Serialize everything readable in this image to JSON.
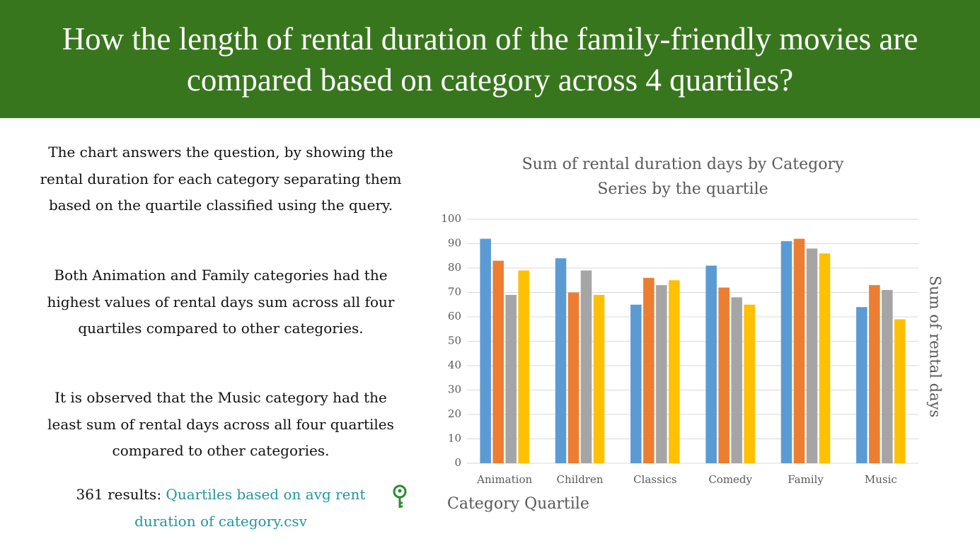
{
  "header": {
    "title": "How the length of rental duration of the family-friendly movies are compared based on category across 4 quartiles?"
  },
  "paragraphs": [
    "The chart answers the question, by showing the rental duration for each category separating them based on the quartile classified using the query.",
    "Both Animation and Family categories had the highest values of rental days sum across all four quartiles compared to other categories.",
    "It is observed that the Music category had the least sum of rental days across all four quartiles compared to other categories."
  ],
  "results": {
    "prefix": "361 results:",
    "link": "Quartiles based on avg rent duration of category.csv"
  },
  "chart_data": {
    "type": "bar",
    "title": "Sum of rental duration days by Category Series by the quartile",
    "x_label": "Category Quartile",
    "y_label": "Sum of rental days",
    "categories": [
      "Animation",
      "Children",
      "Classics",
      "Comedy",
      "Family",
      "Music"
    ],
    "series": [
      {
        "color": "#5b9bd5",
        "values": [
          92,
          84,
          65,
          81,
          91,
          64
        ]
      },
      {
        "color": "#ed7d31",
        "values": [
          83,
          70,
          76,
          72,
          92,
          73
        ]
      },
      {
        "color": "#a5a5a5",
        "values": [
          69,
          79,
          73,
          68,
          88,
          71
        ]
      },
      {
        "color": "#ffc000",
        "values": [
          79,
          69,
          75,
          65,
          86,
          59
        ]
      }
    ],
    "ylim": [
      0,
      100
    ],
    "yticks": [
      0,
      10,
      20,
      30,
      40,
      50,
      60,
      70,
      80,
      90,
      100
    ],
    "grid": true
  }
}
